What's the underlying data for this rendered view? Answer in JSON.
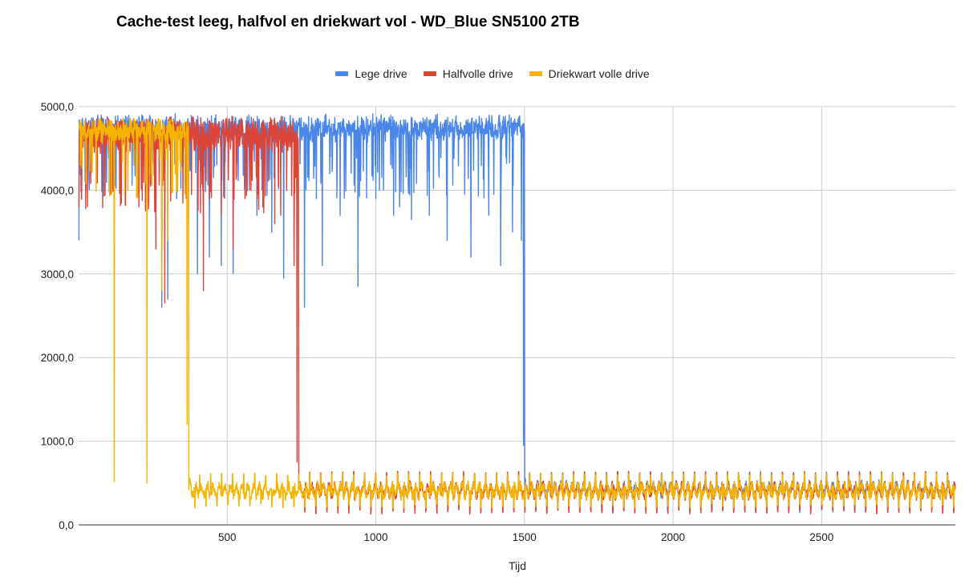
{
  "chart_data": {
    "type": "line",
    "title": "Cache-test leeg, halfvol en driekwart vol - WD_Blue SN5100 2TB",
    "xlabel": "Tijd",
    "ylabel": "",
    "xlim": [
      0,
      2950
    ],
    "ylim": [
      0,
      5000
    ],
    "x_ticks": [
      500,
      1000,
      1500,
      2000,
      2500
    ],
    "x_tick_labels": [
      "500",
      "1000",
      "1500",
      "2000",
      "2500"
    ],
    "y_ticks": [
      0,
      1000,
      2000,
      3000,
      4000,
      5000
    ],
    "y_tick_labels": [
      "0,0",
      "1000,0",
      "2000,0",
      "3000,0",
      "4000,0",
      "5000,0"
    ],
    "grid": true,
    "legend_position": "top-center",
    "series": [
      {
        "name": "Lege drive",
        "color": "#4a86e8",
        "cache_end": 1500,
        "high_level": 4800,
        "high_min": 4400,
        "low_level": 420,
        "low_min": 150,
        "low_max": 640,
        "dips": [
          [
            1,
            3400
          ],
          [
            160,
            4500
          ],
          [
            280,
            2600
          ],
          [
            300,
            2700
          ],
          [
            330,
            3900
          ],
          [
            370,
            3600
          ],
          [
            400,
            3000
          ],
          [
            440,
            3200
          ],
          [
            480,
            3100
          ],
          [
            520,
            3000
          ],
          [
            560,
            3900
          ],
          [
            600,
            3700
          ],
          [
            650,
            3500
          ],
          [
            690,
            2950
          ],
          [
            760,
            2600
          ],
          [
            800,
            3900
          ],
          [
            820,
            3100
          ],
          [
            880,
            3700
          ],
          [
            940,
            2850
          ],
          [
            1000,
            3900
          ],
          [
            1060,
            3700
          ],
          [
            1080,
            3800
          ],
          [
            1120,
            3650
          ],
          [
            1180,
            3700
          ],
          [
            1240,
            3400
          ],
          [
            1320,
            3200
          ],
          [
            1380,
            3700
          ],
          [
            1420,
            3100
          ],
          [
            1460,
            3500
          ],
          [
            1490,
            3400
          ],
          [
            1497,
            950
          ]
        ]
      },
      {
        "name": "Halfvolle drive",
        "color": "#db4437",
        "cache_end": 740,
        "high_level": 4780,
        "high_min": 4200,
        "low_level": 410,
        "low_min": 130,
        "low_max": 640,
        "dips": [
          [
            105,
            4600
          ],
          [
            260,
            3300
          ],
          [
            290,
            2650
          ],
          [
            380,
            3950
          ],
          [
            420,
            2800
          ],
          [
            440,
            3900
          ],
          [
            480,
            3700
          ],
          [
            520,
            3300
          ],
          [
            560,
            3900
          ],
          [
            580,
            4000
          ],
          [
            620,
            3800
          ],
          [
            660,
            3600
          ],
          [
            680,
            3700
          ],
          [
            700,
            4000
          ],
          [
            725,
            3100
          ],
          [
            735,
            750
          ]
        ]
      },
      {
        "name": "Driekwart volle drive",
        "color": "#f4b400",
        "cache_end": 370,
        "high_level": 4760,
        "high_min": 4400,
        "low_level": 410,
        "low_min": 200,
        "low_max": 620,
        "dips": [
          [
            6,
            4300
          ],
          [
            120,
            520
          ],
          [
            230,
            500
          ],
          [
            245,
            4200
          ],
          [
            280,
            2800
          ],
          [
            300,
            3400
          ],
          [
            330,
            4000
          ],
          [
            365,
            1200
          ]
        ]
      }
    ]
  }
}
